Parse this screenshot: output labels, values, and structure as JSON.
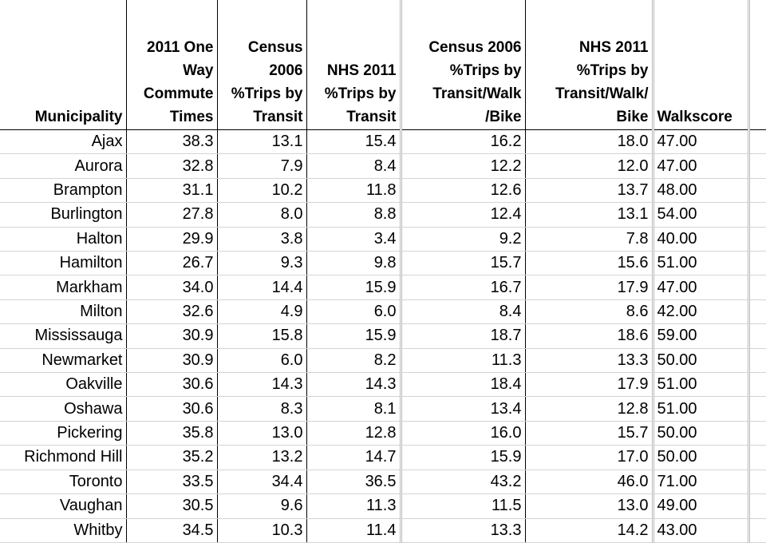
{
  "table": {
    "headers": {
      "municipality": [
        "Municipality"
      ],
      "commute": [
        "2011 One",
        "Way",
        "Commute",
        "Times"
      ],
      "census2006_transit": [
        "Census",
        "2006",
        "%Trips by",
        "Transit"
      ],
      "nhs2011_transit": [
        "NHS 2011",
        "%Trips by",
        "Transit"
      ],
      "census2006_active": [
        "Census 2006",
        "%Trips by",
        "Transit/Walk",
        "/Bike"
      ],
      "nhs2011_active": [
        "NHS 2011",
        "%Trips by",
        "Transit/Walk/",
        "Bike"
      ],
      "walkscore": [
        "Walkscore"
      ]
    },
    "rows": [
      [
        "Ajax",
        "38.3",
        "13.1",
        "15.4",
        "16.2",
        "18.0",
        "47.00"
      ],
      [
        "Aurora",
        "32.8",
        "7.9",
        "8.4",
        "12.2",
        "12.0",
        "47.00"
      ],
      [
        "Brampton",
        "31.1",
        "10.2",
        "11.8",
        "12.6",
        "13.7",
        "48.00"
      ],
      [
        "Burlington",
        "27.8",
        "8.0",
        "8.8",
        "12.4",
        "13.1",
        "54.00"
      ],
      [
        "Halton",
        "29.9",
        "3.8",
        "3.4",
        "9.2",
        "7.8",
        "40.00"
      ],
      [
        "Hamilton",
        "26.7",
        "9.3",
        "9.8",
        "15.7",
        "15.6",
        "51.00"
      ],
      [
        "Markham",
        "34.0",
        "14.4",
        "15.9",
        "16.7",
        "17.9",
        "47.00"
      ],
      [
        "Milton",
        "32.6",
        "4.9",
        "6.0",
        "8.4",
        "8.6",
        "42.00"
      ],
      [
        "Mississauga",
        "30.9",
        "15.8",
        "15.9",
        "18.7",
        "18.6",
        "59.00"
      ],
      [
        "Newmarket",
        "30.9",
        "6.0",
        "8.2",
        "11.3",
        "13.3",
        "50.00"
      ],
      [
        "Oakville",
        "30.6",
        "14.3",
        "14.3",
        "18.4",
        "17.9",
        "51.00"
      ],
      [
        "Oshawa",
        "30.6",
        "8.3",
        "8.1",
        "13.4",
        "12.8",
        "51.00"
      ],
      [
        "Pickering",
        "35.8",
        "13.0",
        "12.8",
        "16.0",
        "15.7",
        "50.00"
      ],
      [
        "Richmond Hill",
        "35.2",
        "13.2",
        "14.7",
        "15.9",
        "17.0",
        "50.00"
      ],
      [
        "Toronto",
        "33.5",
        "34.4",
        "36.5",
        "43.2",
        "46.0",
        "71.00"
      ],
      [
        "Vaughan",
        "30.5",
        "9.6",
        "11.3",
        "11.5",
        "13.0",
        "49.00"
      ],
      [
        "Whitby",
        "34.5",
        "10.3",
        "11.4",
        "13.3",
        "14.2",
        "43.00"
      ]
    ]
  }
}
